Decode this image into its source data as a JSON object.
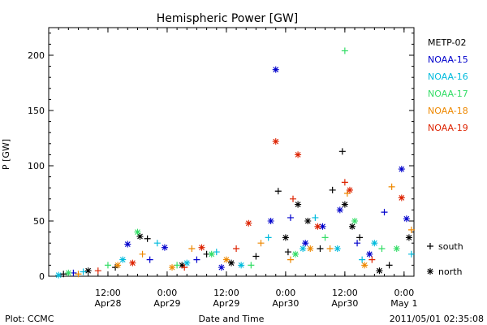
{
  "chart_data": {
    "type": "scatter",
    "title": "Hemispheric Power [GW]",
    "ylabel": "P [GW]",
    "xlabel": "Date and Time",
    "ylim": [
      0,
      225
    ],
    "yticks": [
      0,
      50,
      100,
      150,
      200
    ],
    "xlim": [
      "2011-04-28 00:00",
      "2011-05-01 02:00"
    ],
    "xticks": [
      {
        "t": "2011-04-28 12:00",
        "line1": "12:00",
        "line2": "Apr28"
      },
      {
        "t": "2011-04-29 00:00",
        "line1": "0:00",
        "line2": "Apr29"
      },
      {
        "t": "2011-04-29 12:00",
        "line1": "12:00",
        "line2": "Apr29"
      },
      {
        "t": "2011-04-30 00:00",
        "line1": "0:00",
        "line2": "Apr30"
      },
      {
        "t": "2011-04-30 12:00",
        "line1": "12:00",
        "line2": "Apr30"
      },
      {
        "t": "2011-05-01 00:00",
        "line1": "0:00",
        "line2": "May 1"
      }
    ],
    "markers": [
      {
        "symbol": "+",
        "label": "south"
      },
      {
        "symbol": "*",
        "label": "north"
      }
    ],
    "series": [
      {
        "name": "METP-02",
        "color": "#000000",
        "points": [
          {
            "t": "2011-04-28 03:00",
            "y": 2,
            "m": "+"
          },
          {
            "t": "2011-04-28 08:00",
            "y": 5,
            "m": "*"
          },
          {
            "t": "2011-04-28 13:30",
            "y": 8,
            "m": "+"
          },
          {
            "t": "2011-04-28 18:30",
            "y": 36,
            "m": "*"
          },
          {
            "t": "2011-04-28 20:00",
            "y": 34,
            "m": "+"
          },
          {
            "t": "2011-04-29 03:00",
            "y": 10,
            "m": "*"
          },
          {
            "t": "2011-04-29 08:00",
            "y": 20,
            "m": "+"
          },
          {
            "t": "2011-04-29 13:00",
            "y": 12,
            "m": "*"
          },
          {
            "t": "2011-04-29 18:00",
            "y": 18,
            "m": "+"
          },
          {
            "t": "2011-04-29 22:30",
            "y": 77,
            "m": "+"
          },
          {
            "t": "2011-04-30 00:00",
            "y": 35,
            "m": "*"
          },
          {
            "t": "2011-04-30 00:30",
            "y": 22,
            "m": "+"
          },
          {
            "t": "2011-04-30 02:30",
            "y": 65,
            "m": "*"
          },
          {
            "t": "2011-04-30 04:30",
            "y": 50,
            "m": "*"
          },
          {
            "t": "2011-04-30 07:00",
            "y": 25,
            "m": "+"
          },
          {
            "t": "2011-04-30 09:30",
            "y": 78,
            "m": "+"
          },
          {
            "t": "2011-04-30 11:30",
            "y": 113,
            "m": "+"
          },
          {
            "t": "2011-04-30 12:00",
            "y": 65,
            "m": "*"
          },
          {
            "t": "2011-04-30 13:30",
            "y": 45,
            "m": "*"
          },
          {
            "t": "2011-04-30 15:00",
            "y": 35,
            "m": "+"
          },
          {
            "t": "2011-04-30 19:00",
            "y": 5,
            "m": "*"
          },
          {
            "t": "2011-04-30 21:00",
            "y": 10,
            "m": "+"
          },
          {
            "t": "2011-05-01 01:00",
            "y": 35,
            "m": "*"
          }
        ]
      },
      {
        "name": "NOAA-15",
        "color": "#0000cc",
        "points": [
          {
            "t": "2011-04-28 05:00",
            "y": 3,
            "m": "+"
          },
          {
            "t": "2011-04-28 16:00",
            "y": 29,
            "m": "*"
          },
          {
            "t": "2011-04-28 20:30",
            "y": 15,
            "m": "+"
          },
          {
            "t": "2011-04-28 23:30",
            "y": 26,
            "m": "*"
          },
          {
            "t": "2011-04-29 06:00",
            "y": 15,
            "m": "+"
          },
          {
            "t": "2011-04-29 11:00",
            "y": 8,
            "m": "*"
          },
          {
            "t": "2011-04-29 21:00",
            "y": 50,
            "m": "*"
          },
          {
            "t": "2011-04-29 22:00",
            "y": 187,
            "m": "*"
          },
          {
            "t": "2011-04-30 01:00",
            "y": 53,
            "m": "+"
          },
          {
            "t": "2011-04-30 04:00",
            "y": 30,
            "m": "*"
          },
          {
            "t": "2011-04-30 07:30",
            "y": 45,
            "m": "*"
          },
          {
            "t": "2011-04-30 11:00",
            "y": 60,
            "m": "*"
          },
          {
            "t": "2011-04-30 14:30",
            "y": 30,
            "m": "+"
          },
          {
            "t": "2011-04-30 17:00",
            "y": 20,
            "m": "*"
          },
          {
            "t": "2011-04-30 20:00",
            "y": 58,
            "m": "+"
          },
          {
            "t": "2011-04-30 23:30",
            "y": 97,
            "m": "*"
          },
          {
            "t": "2011-05-01 00:30",
            "y": 52,
            "m": "*"
          }
        ]
      },
      {
        "name": "NOAA-16",
        "color": "#00bbdd",
        "points": [
          {
            "t": "2011-04-28 02:00",
            "y": 1,
            "m": "*"
          },
          {
            "t": "2011-04-28 07:00",
            "y": 4,
            "m": "+"
          },
          {
            "t": "2011-04-28 15:00",
            "y": 15,
            "m": "*"
          },
          {
            "t": "2011-04-28 22:00",
            "y": 30,
            "m": "+"
          },
          {
            "t": "2011-04-29 04:00",
            "y": 12,
            "m": "*"
          },
          {
            "t": "2011-04-29 10:00",
            "y": 22,
            "m": "+"
          },
          {
            "t": "2011-04-29 15:00",
            "y": 10,
            "m": "*"
          },
          {
            "t": "2011-04-29 20:30",
            "y": 35,
            "m": "+"
          },
          {
            "t": "2011-04-30 03:30",
            "y": 25,
            "m": "*"
          },
          {
            "t": "2011-04-30 06:00",
            "y": 53,
            "m": "+"
          },
          {
            "t": "2011-04-30 10:30",
            "y": 25,
            "m": "*"
          },
          {
            "t": "2011-04-30 15:30",
            "y": 15,
            "m": "+"
          },
          {
            "t": "2011-04-30 18:00",
            "y": 30,
            "m": "*"
          },
          {
            "t": "2011-05-01 01:30",
            "y": 20,
            "m": "+"
          }
        ]
      },
      {
        "name": "NOAA-17",
        "color": "#33dd66",
        "points": [
          {
            "t": "2011-04-28 04:00",
            "y": 3,
            "m": "*"
          },
          {
            "t": "2011-04-28 12:00",
            "y": 10,
            "m": "+"
          },
          {
            "t": "2011-04-28 18:00",
            "y": 40,
            "m": "*"
          },
          {
            "t": "2011-04-29 02:00",
            "y": 10,
            "m": "+"
          },
          {
            "t": "2011-04-29 09:00",
            "y": 20,
            "m": "*"
          },
          {
            "t": "2011-04-29 17:00",
            "y": 10,
            "m": "+"
          },
          {
            "t": "2011-04-30 02:00",
            "y": 20,
            "m": "*"
          },
          {
            "t": "2011-04-30 08:00",
            "y": 35,
            "m": "+"
          },
          {
            "t": "2011-04-30 12:00",
            "y": 204,
            "m": "+"
          },
          {
            "t": "2011-04-30 14:00",
            "y": 50,
            "m": "*"
          },
          {
            "t": "2011-04-30 19:30",
            "y": 25,
            "m": "+"
          },
          {
            "t": "2011-04-30 22:30",
            "y": 25,
            "m": "*"
          }
        ]
      },
      {
        "name": "NOAA-18",
        "color": "#ee8800",
        "points": [
          {
            "t": "2011-04-28 06:00",
            "y": 2,
            "m": "+"
          },
          {
            "t": "2011-04-28 14:00",
            "y": 10,
            "m": "*"
          },
          {
            "t": "2011-04-28 19:00",
            "y": 20,
            "m": "+"
          },
          {
            "t": "2011-04-29 01:00",
            "y": 8,
            "m": "*"
          },
          {
            "t": "2011-04-29 05:00",
            "y": 25,
            "m": "+"
          },
          {
            "t": "2011-04-29 12:00",
            "y": 15,
            "m": "*"
          },
          {
            "t": "2011-04-29 19:00",
            "y": 30,
            "m": "+"
          },
          {
            "t": "2011-04-30 01:00",
            "y": 15,
            "m": "+"
          },
          {
            "t": "2011-04-30 05:00",
            "y": 25,
            "m": "*"
          },
          {
            "t": "2011-04-30 09:00",
            "y": 25,
            "m": "+"
          },
          {
            "t": "2011-04-30 12:30",
            "y": 75,
            "m": "+"
          },
          {
            "t": "2011-04-30 16:00",
            "y": 10,
            "m": "*"
          },
          {
            "t": "2011-04-30 21:30",
            "y": 81,
            "m": "+"
          },
          {
            "t": "2011-05-01 01:30",
            "y": 42,
            "m": "+"
          }
        ]
      },
      {
        "name": "NOAA-19",
        "color": "#dd2200",
        "points": [
          {
            "t": "2011-04-28 10:00",
            "y": 5,
            "m": "+"
          },
          {
            "t": "2011-04-28 17:00",
            "y": 12,
            "m": "*"
          },
          {
            "t": "2011-04-29 03:30",
            "y": 8,
            "m": "+"
          },
          {
            "t": "2011-04-29 07:00",
            "y": 26,
            "m": "*"
          },
          {
            "t": "2011-04-29 14:00",
            "y": 25,
            "m": "+"
          },
          {
            "t": "2011-04-29 16:30",
            "y": 48,
            "m": "*"
          },
          {
            "t": "2011-04-29 22:00",
            "y": 122,
            "m": "*"
          },
          {
            "t": "2011-04-30 01:30",
            "y": 70,
            "m": "+"
          },
          {
            "t": "2011-04-30 02:30",
            "y": 110,
            "m": "*"
          },
          {
            "t": "2011-04-30 06:30",
            "y": 45,
            "m": "*"
          },
          {
            "t": "2011-04-30 12:00",
            "y": 85,
            "m": "+"
          },
          {
            "t": "2011-04-30 13:00",
            "y": 78,
            "m": "*"
          },
          {
            "t": "2011-04-30 17:30",
            "y": 15,
            "m": "+"
          },
          {
            "t": "2011-04-30 23:30",
            "y": 71,
            "m": "*"
          }
        ]
      }
    ]
  },
  "footer": {
    "plot_credit": "Plot: CCMC",
    "timestamp": "2011/05/01 02:35:08"
  }
}
